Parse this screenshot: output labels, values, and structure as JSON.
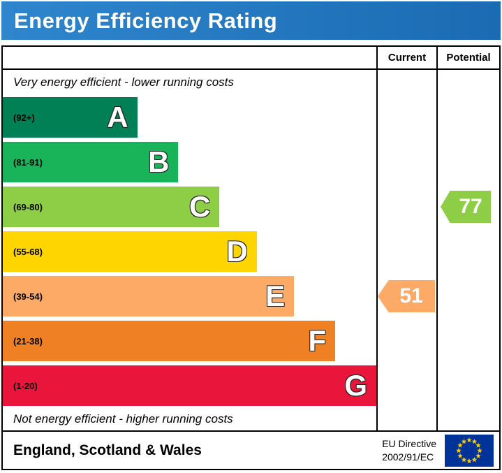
{
  "header": {
    "title": "Energy Efficiency Rating"
  },
  "table": {
    "current_label": "Current",
    "potential_label": "Potential"
  },
  "notes": {
    "top": "Very energy efficient - lower running costs",
    "bottom": "Not energy efficient - higher running costs"
  },
  "footer": {
    "region": "England, Scotland & Wales",
    "directive_line1": "EU Directive",
    "directive_line2": "2002/91/EC",
    "flag": {
      "name": "eu-flag-icon",
      "background": "#003399",
      "star_color": "#ffcc00"
    }
  },
  "chart_data": {
    "type": "bar",
    "title": "Energy Efficiency Rating",
    "value_range": [
      1,
      100
    ],
    "bands": [
      {
        "letter": "A",
        "range_label": "(92+)",
        "min": 92,
        "max": 100,
        "color": "#008054",
        "width_pct": 36
      },
      {
        "letter": "B",
        "range_label": "(81-91)",
        "min": 81,
        "max": 91,
        "color": "#19b459",
        "width_pct": 47
      },
      {
        "letter": "C",
        "range_label": "(69-80)",
        "min": 69,
        "max": 80,
        "color": "#8dce46",
        "width_pct": 58
      },
      {
        "letter": "D",
        "range_label": "(55-68)",
        "min": 55,
        "max": 68,
        "color": "#ffd500",
        "width_pct": 68
      },
      {
        "letter": "E",
        "range_label": "(39-54)",
        "min": 39,
        "max": 54,
        "color": "#fcaa65",
        "width_pct": 78
      },
      {
        "letter": "F",
        "range_label": "(21-38)",
        "min": 21,
        "max": 38,
        "color": "#ef8023",
        "width_pct": 89
      },
      {
        "letter": "G",
        "range_label": "(1-20)",
        "min": 1,
        "max": 20,
        "color": "#e9153b",
        "width_pct": 100
      }
    ],
    "current": {
      "value": 51,
      "band": "E",
      "band_index": 4,
      "color": "#fcaa65"
    },
    "potential": {
      "value": 77,
      "band": "C",
      "band_index": 2,
      "color": "#8dce46"
    }
  }
}
